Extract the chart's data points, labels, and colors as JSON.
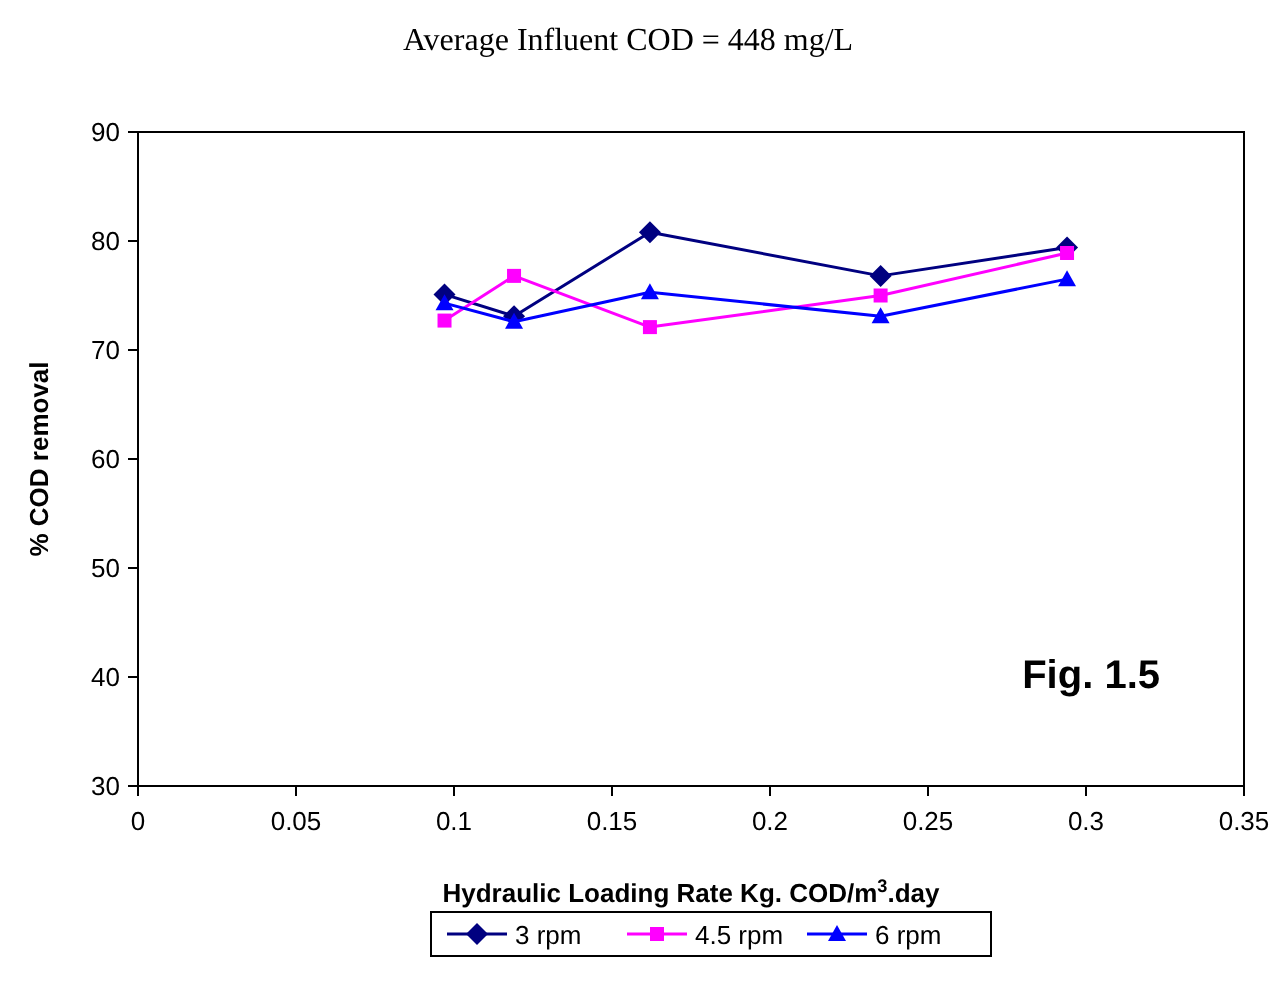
{
  "chart_data": {
    "type": "line",
    "title": "Average Influent COD = 448 mg/L",
    "xlabel": "Hydraulic Loading Rate Kg. COD/m$^{3}$.day",
    "ylabel": "% COD removal",
    "annotations": [
      "Fig. 1.5"
    ],
    "x": [
      0.097,
      0.119,
      0.162,
      0.235,
      0.294
    ],
    "series": [
      {
        "name": "3 rpm",
        "color": "#000080",
        "marker": "diamond",
        "values": [
          75.1,
          73.1,
          80.8,
          76.8,
          79.4
        ]
      },
      {
        "name": "4.5 rpm",
        "color": "#ff00ff",
        "marker": "square",
        "values": [
          72.7,
          76.8,
          72.1,
          75.0,
          78.9
        ]
      },
      {
        "name": "6 rpm",
        "color": "#0000ff",
        "marker": "triangle",
        "values": [
          74.3,
          72.6,
          75.3,
          73.1,
          76.5
        ]
      }
    ],
    "xlim": [
      0,
      0.35
    ],
    "xticks": [
      0,
      0.05,
      0.1,
      0.15,
      0.2,
      0.25,
      0.3,
      0.35
    ],
    "ylim": [
      30,
      90
    ],
    "yticks": [
      30,
      40,
      50,
      60,
      70,
      80,
      90
    ],
    "grid": false,
    "legend": "bottom"
  }
}
